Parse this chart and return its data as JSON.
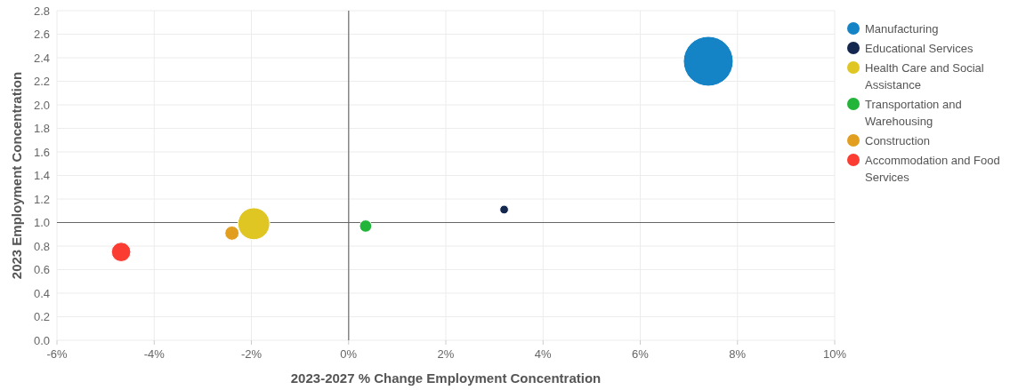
{
  "chart_data": {
    "type": "bubble",
    "xlabel": "2023-2027 % Change Employment Concentration",
    "ylabel": "2023 Employment Concentration",
    "xlim": [
      -6,
      10
    ],
    "xticks": [
      {
        "value": -6,
        "label": "-6%"
      },
      {
        "value": -4,
        "label": "-4%"
      },
      {
        "value": -2,
        "label": "-2%"
      },
      {
        "value": 0,
        "label": "0%"
      },
      {
        "value": 2,
        "label": "2%"
      },
      {
        "value": 4,
        "label": "4%"
      },
      {
        "value": 6,
        "label": "6%"
      },
      {
        "value": 8,
        "label": "8%"
      },
      {
        "value": 10,
        "label": "10%"
      }
    ],
    "ylim": [
      0,
      2.8
    ],
    "yticks": [
      {
        "value": 0,
        "label": "0.0"
      },
      {
        "value": 0.2,
        "label": "0.2"
      },
      {
        "value": 0.4,
        "label": "0.4"
      },
      {
        "value": 0.6,
        "label": "0.6"
      },
      {
        "value": 0.8,
        "label": "0.8"
      },
      {
        "value": 1,
        "label": "1.0"
      },
      {
        "value": 1.2,
        "label": "1.2"
      },
      {
        "value": 1.4,
        "label": "1.4"
      },
      {
        "value": 1.6,
        "label": "1.6"
      },
      {
        "value": 1.8,
        "label": "1.8"
      },
      {
        "value": 2,
        "label": "2.0"
      },
      {
        "value": 2.2,
        "label": "2.2"
      },
      {
        "value": 2.4,
        "label": "2.4"
      },
      {
        "value": 2.6,
        "label": "2.6"
      },
      {
        "value": 2.8,
        "label": "2.8"
      }
    ],
    "grid": true,
    "legend": "right",
    "ref_lines": [
      {
        "axis": "x",
        "value": 0,
        "color": "#888888"
      },
      {
        "axis": "y",
        "value": 1,
        "color": "#666666"
      }
    ],
    "series": [
      {
        "name": "Manufacturing",
        "color": "#1484c6",
        "x": [
          7.4
        ],
        "values": [
          2.37
        ],
        "sizes": [
          1
        ]
      },
      {
        "name": "Educational Services",
        "color": "#13274f",
        "x": [
          3.2
        ],
        "values": [
          1.11
        ],
        "sizes": [
          0.03
        ]
      },
      {
        "name": "Health Care and Social Assistance",
        "color": "#e0c622",
        "x": [
          -1.95
        ],
        "values": [
          0.99
        ],
        "sizes": [
          0.41
        ]
      },
      {
        "name": "Transportation and Warehousing",
        "color": "#22b53a",
        "x": [
          0.35
        ],
        "values": [
          0.97
        ],
        "sizes": [
          0.06
        ]
      },
      {
        "name": "Construction",
        "color": "#e29f1f",
        "x": [
          -2.4
        ],
        "values": [
          0.91
        ],
        "sizes": [
          0.08
        ]
      },
      {
        "name": "Accommodation and Food Services",
        "color": "#fa3c32",
        "x": [
          -4.68
        ],
        "values": [
          0.75
        ],
        "sizes": [
          0.15
        ]
      }
    ]
  }
}
